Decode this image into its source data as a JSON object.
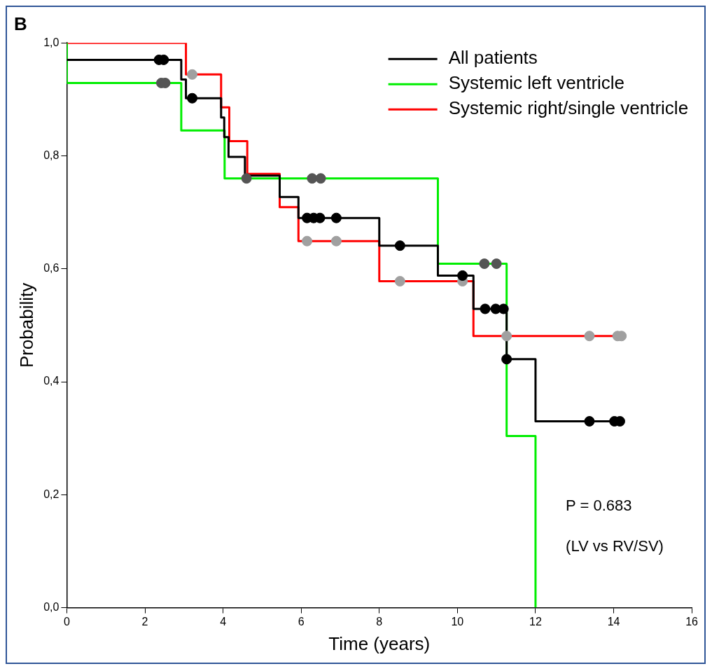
{
  "chart_data": {
    "type": "step",
    "title": "B",
    "xlabel": "Time (years)",
    "ylabel": "Probability",
    "xlim": [
      0,
      16
    ],
    "xticks": [
      0,
      2,
      4,
      6,
      8,
      10,
      12,
      14,
      16
    ],
    "ylim": [
      0,
      1
    ],
    "yticks": [
      {
        "value": 0,
        "label": "0,0"
      },
      {
        "value": 0.2,
        "label": "0,2"
      },
      {
        "value": 0.4,
        "label": "0,4"
      },
      {
        "value": 0.6,
        "label": "0,6"
      },
      {
        "value": 0.8,
        "label": "0,8"
      },
      {
        "value": 1,
        "label": "1,0"
      }
    ],
    "grid": false,
    "legend": "top right",
    "line_style": "solid",
    "annotations": [
      "P = 0.683",
      "(LV vs RV/SV)"
    ],
    "series": [
      {
        "name": "All patients",
        "type": "step",
        "color": "#000000",
        "x": [
          0,
          2.93,
          3.05,
          3.95,
          4.03,
          4.14,
          4.56,
          5.45,
          5.93,
          8.0,
          9.5,
          10.41,
          11.26,
          12.0,
          14.2
        ],
        "values": [
          0.97,
          0.935,
          0.902,
          0.868,
          0.833,
          0.798,
          0.765,
          0.727,
          0.69,
          0.641,
          0.588,
          0.529,
          0.44,
          0.33,
          0.33
        ]
      },
      {
        "name": "Systemic left ventricle",
        "type": "step",
        "color": "#00ee00",
        "x": [
          0,
          0,
          2.93,
          4.04,
          9.5,
          11.26,
          12.0
        ],
        "values": [
          1,
          0.929,
          0.845,
          0.76,
          0.609,
          0.304,
          0
        ]
      },
      {
        "name": "Systemic right/single ventricle",
        "type": "step",
        "color": "#ff0000",
        "x": [
          0,
          3.05,
          3.95,
          4.16,
          4.62,
          5.45,
          5.93,
          8.0,
          10.41,
          14.25
        ],
        "values": [
          1,
          0.944,
          0.886,
          0.826,
          0.768,
          0.709,
          0.649,
          0.578,
          0.481,
          0.481
        ]
      },
      {
        "type": "scatter",
        "marker": "circle",
        "color": "#000000",
        "x": [
          2.36,
          2.48,
          3.21,
          6.15,
          6.32,
          6.48,
          6.9,
          8.53,
          10.13,
          10.71,
          10.98,
          11.18,
          11.26,
          13.38,
          14.02,
          14.16
        ],
        "values": [
          0.97,
          0.97,
          0.902,
          0.69,
          0.69,
          0.69,
          0.69,
          0.641,
          0.588,
          0.529,
          0.529,
          0.529,
          0.44,
          0.33,
          0.33,
          0.33
        ]
      },
      {
        "type": "scatter",
        "marker": "circle",
        "color": "#555555",
        "x": [
          2.42,
          2.52,
          4.6,
          6.28,
          6.5,
          10.69,
          11.0
        ],
        "values": [
          0.929,
          0.929,
          0.76,
          0.76,
          0.76,
          0.609,
          0.609
        ]
      },
      {
        "type": "scatter",
        "marker": "circle",
        "color": "#a0a0a0",
        "x": [
          3.21,
          6.15,
          6.9,
          8.53,
          10.13,
          11.26,
          13.38,
          14.1,
          14.2
        ],
        "values": [
          0.944,
          0.649,
          0.649,
          0.578,
          0.578,
          0.481,
          0.481,
          0.481,
          0.481
        ]
      }
    ]
  }
}
